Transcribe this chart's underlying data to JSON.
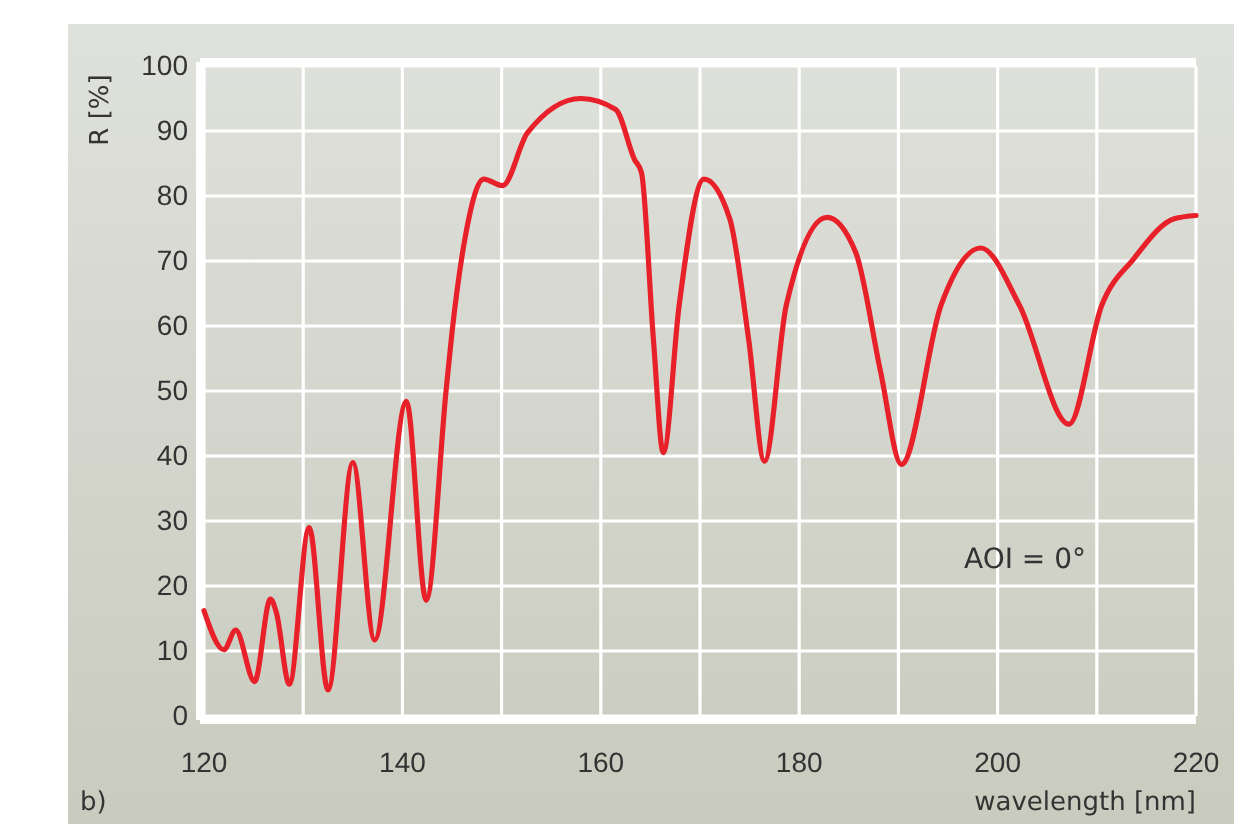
{
  "chart_data": {
    "type": "line",
    "xlabel": "wavelength [nm]",
    "ylabel": "R  [%]",
    "xlim": [
      120,
      220
    ],
    "xticks": [
      120,
      140,
      160,
      180,
      200,
      220
    ],
    "ylim": [
      0,
      100
    ],
    "yticks": [
      0,
      10,
      20,
      30,
      40,
      50,
      60,
      70,
      80,
      90,
      100
    ],
    "grid": true,
    "line_style": "solid",
    "marker": "none",
    "annotations": [
      "AOI = 0°",
      "b)"
    ],
    "series": [
      {
        "color": "#e8202a",
        "x": [
          120,
          122,
          123.2,
          125.1,
          126.7,
          127.3,
          128.6,
          130.6,
          132.5,
          135,
          137.2,
          140.4,
          142.4,
          144.4,
          145,
          146.3,
          148.2,
          150.1,
          152.6,
          158,
          161.5,
          163.4,
          164.1,
          165.3,
          166.3,
          167.9,
          170.4,
          173,
          174.9,
          176.5,
          178.7,
          182.8,
          185.7,
          188.2,
          190.3,
          194.3,
          198.3,
          202.2,
          207.2,
          210.5,
          213.7,
          217.8,
          220
        ],
        "values": [
          16.2,
          10.2,
          13.2,
          5.3,
          18,
          15.9,
          4.9,
          29,
          4,
          39,
          11.7,
          48.4,
          17.8,
          50,
          59,
          73.4,
          82.6,
          81.6,
          89.7,
          95,
          93.3,
          85.6,
          83.6,
          58,
          40.5,
          63.2,
          82.6,
          76.5,
          58,
          39.2,
          63.2,
          76.7,
          71.3,
          53,
          38.7,
          63.2,
          72,
          63.2,
          44.9,
          63.2,
          70.3,
          76.5,
          77
        ]
      }
    ]
  }
}
